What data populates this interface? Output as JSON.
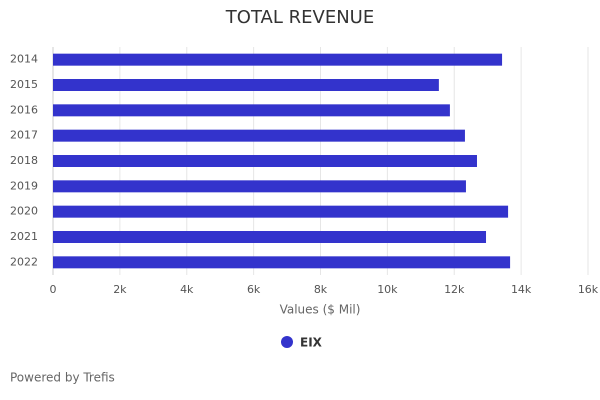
{
  "chart_data": {
    "type": "bar",
    "title": "TOTAL REVENUE",
    "categories": [
      "2014",
      "2015",
      "2016",
      "2017",
      "2018",
      "2019",
      "2020",
      "2021",
      "2022"
    ],
    "series": [
      {
        "name": "EIX",
        "color": "#3333cc",
        "values": [
          13430,
          11540,
          11870,
          12320,
          12680,
          12350,
          13610,
          12950,
          13670
        ]
      }
    ],
    "xlabel": "Values ($ Mil)",
    "xlim": [
      0,
      16000
    ],
    "xticks": [
      0,
      {
        "value": 2000,
        "label": "2k"
      },
      {
        "value": 4000,
        "label": "4k"
      },
      {
        "value": 6000,
        "label": "6k"
      },
      {
        "value": 8000,
        "label": "8k"
      },
      {
        "value": 10000,
        "label": "10k"
      },
      {
        "value": 12000,
        "label": "12k"
      },
      {
        "value": 14000,
        "label": "14k"
      },
      {
        "value": 16000,
        "label": "16k"
      }
    ],
    "grid": true,
    "footer": "Powered by Trefis"
  }
}
